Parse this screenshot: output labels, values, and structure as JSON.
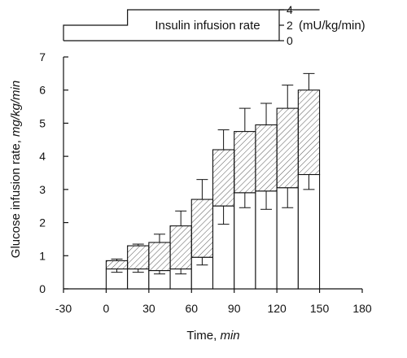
{
  "chart_data": {
    "type": "bar",
    "subtype": "stacked bar with error bars over a step-function inset",
    "title": "",
    "xlabel": "Time,",
    "xlabel_unit": "min",
    "ylabel": "Glucose infusion rate,",
    "ylabel_unit": "mg/kg/min",
    "xlim": [
      -30,
      180
    ],
    "ylim": [
      0,
      7
    ],
    "x_ticks": [
      "-30",
      "0",
      "30",
      "60",
      "90",
      "120",
      "150",
      "180"
    ],
    "y_ticks": [
      "0",
      "1",
      "2",
      "3",
      "4",
      "5",
      "6",
      "7"
    ],
    "bar_width_min": 15,
    "x_start": [
      0,
      15,
      30,
      45,
      60,
      75,
      90,
      105,
      120,
      135
    ],
    "series": [
      {
        "pattern": "open",
        "values": [
          0.6,
          0.6,
          0.55,
          0.6,
          0.95,
          2.5,
          2.9,
          2.95,
          3.05,
          3.45
        ],
        "lower_error": [
          0.5,
          0.5,
          0.45,
          0.45,
          0.72,
          1.95,
          2.45,
          2.4,
          2.45,
          3.0
        ]
      },
      {
        "pattern": "hatched",
        "values": [
          0.85,
          1.3,
          1.4,
          1.9,
          2.7,
          4.2,
          4.75,
          4.95,
          5.45,
          6.0
        ],
        "upper_error": [
          0.9,
          1.35,
          1.65,
          2.35,
          3.3,
          4.8,
          5.45,
          5.6,
          6.15,
          6.5
        ]
      }
    ],
    "grid": false,
    "legend": "none",
    "insulin_inset": {
      "label": "Insulin infusion rate",
      "unit": "(mU/kg/min)",
      "ticks": [
        "4",
        "2",
        "0"
      ],
      "levels": [
        {
          "from": -30,
          "to": 15,
          "value": 2
        },
        {
          "from": 15,
          "to": 150,
          "value": 4
        }
      ]
    }
  }
}
